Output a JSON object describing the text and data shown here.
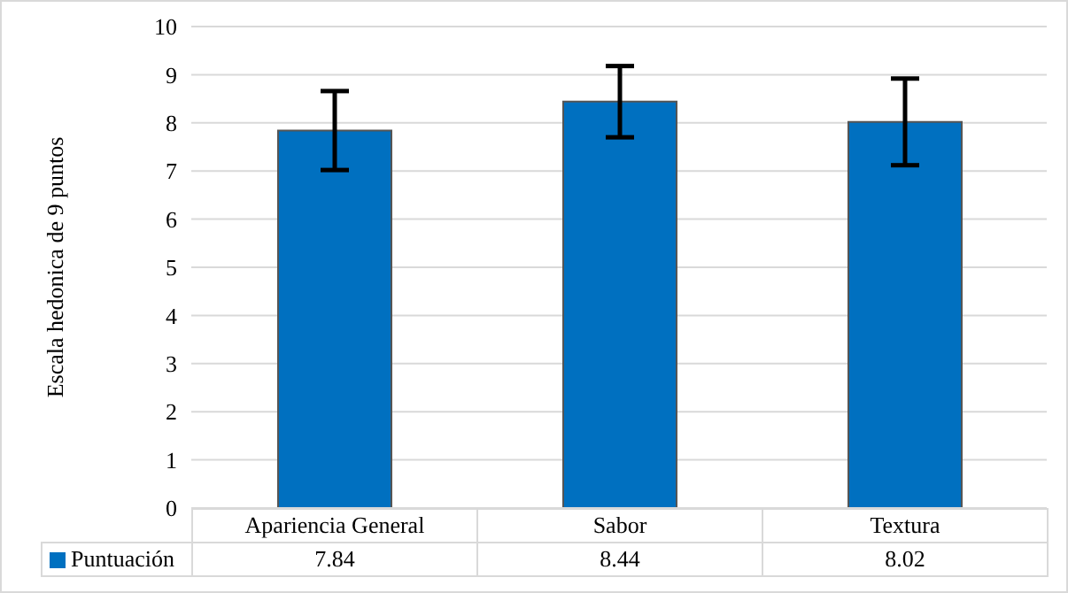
{
  "chart_data": {
    "type": "bar",
    "ylabel": "Escala hedonica de 9 puntos",
    "categories": [
      "Apariencia General",
      "Sabor",
      "Textura"
    ],
    "series": [
      {
        "name": "Puntuación",
        "color": "#0070c0",
        "values": [
          7.84,
          8.44,
          8.02
        ],
        "errors": [
          0.82,
          0.74,
          0.9
        ]
      }
    ],
    "ylim": [
      0,
      10
    ],
    "yticks": [
      0,
      1,
      2,
      3,
      4,
      5,
      6,
      7,
      8,
      9,
      10
    ],
    "grid": "y",
    "legend": "bottom",
    "data_labels": true
  }
}
